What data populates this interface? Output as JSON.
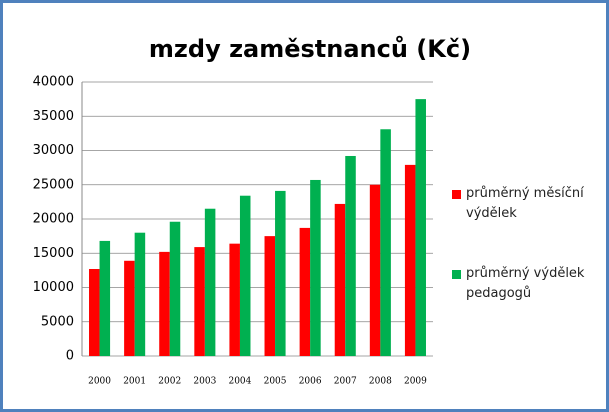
{
  "chart_data": {
    "type": "bar",
    "title": "mzdy zaměstnanců (Kč)",
    "categories": [
      "2000",
      "2001",
      "2002",
      "2003",
      "2004",
      "2005",
      "2006",
      "2007",
      "2008",
      "2009"
    ],
    "series": [
      {
        "name": "průměrný měsíční výdělek",
        "color": "#ff0000",
        "values": [
          12700,
          13900,
          15200,
          15900,
          16400,
          17500,
          18700,
          22200,
          25000,
          27900
        ]
      },
      {
        "name": "průměrný výdělek pedagogů",
        "color": "#00b050",
        "values": [
          16800,
          18000,
          19600,
          21500,
          23400,
          24100,
          25700,
          29200,
          33100,
          37500
        ]
      }
    ],
    "ylim": [
      0,
      40000
    ],
    "yticks": [
      0,
      5000,
      10000,
      15000,
      20000,
      25000,
      30000,
      35000,
      40000
    ],
    "grid": true,
    "legend": "right"
  }
}
